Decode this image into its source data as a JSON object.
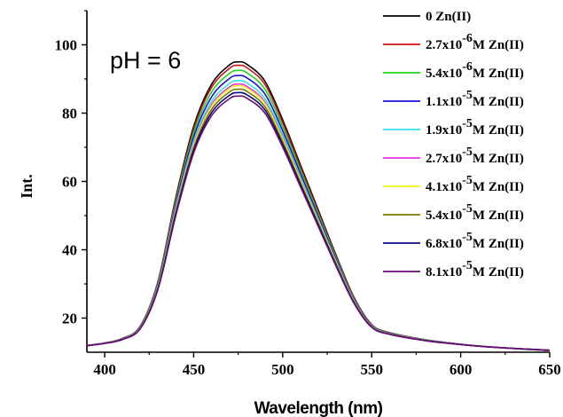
{
  "chart_data": {
    "type": "line",
    "xlabel": "Wavelength (nm)",
    "ylabel": "Int.",
    "annotation": "pH = 6",
    "xlim": [
      390,
      650
    ],
    "ylim": [
      10,
      110
    ],
    "x_ticks": [
      400,
      450,
      500,
      550,
      600,
      650
    ],
    "y_ticks": [
      20,
      40,
      60,
      80,
      100
    ],
    "legend_position": "top-right",
    "x": [
      390,
      400,
      410,
      420,
      430,
      440,
      450,
      460,
      470,
      475,
      480,
      490,
      500,
      510,
      520,
      530,
      540,
      550,
      560,
      580,
      600,
      620,
      650
    ],
    "series": [
      {
        "name_prefix": "0 Zn(II)",
        "name_exp": "",
        "name_suffix": "",
        "color": "#000000",
        "peak": 95.0
      },
      {
        "name_prefix": "2.7x10",
        "name_exp": "-6",
        "name_suffix": "M Zn(II)",
        "color": "#d11010",
        "peak": 94.0
      },
      {
        "name_prefix": "5.4x10",
        "name_exp": "-6",
        "name_suffix": "M Zn(II)",
        "color": "#1ed41e",
        "peak": 92.5
      },
      {
        "name_prefix": "1.1x10",
        "name_exp": "-5",
        "name_suffix": "M Zn(II)",
        "color": "#1414d8",
        "peak": 91.0
      },
      {
        "name_prefix": "1.9x10",
        "name_exp": "-5",
        "name_suffix": "M Zn(II)",
        "color": "#2ee0f0",
        "peak": 89.5
      },
      {
        "name_prefix": "2.7x10",
        "name_exp": "-5",
        "name_suffix": "M Zn(II)",
        "color": "#e834e8",
        "peak": 88.5
      },
      {
        "name_prefix": "4.1x10",
        "name_exp": "-5",
        "name_suffix": "M Zn(II)",
        "color": "#f0f020",
        "peak": 88.0
      },
      {
        "name_prefix": "5.4x10",
        "name_exp": "-5",
        "name_suffix": "M Zn(II)",
        "color": "#7a7a00",
        "peak": 87.0
      },
      {
        "name_prefix": "6.8x10",
        "name_exp": "-5",
        "name_suffix": "M Zn(II)",
        "color": "#0a0a80",
        "peak": 86.0
      },
      {
        "name_prefix": "8.1x10",
        "name_exp": "-5",
        "name_suffix": "M Zn(II)",
        "color": "#6a0a7a",
        "peak": 85.0
      }
    ],
    "shape": [
      12.0,
      12.8,
      14.2,
      18.0,
      32.0,
      58.0,
      80.0,
      93.0,
      99.0,
      100.0,
      99.2,
      94.0,
      82.0,
      68.0,
      54.0,
      40.0,
      27.0,
      18.5,
      16.0,
      13.8,
      12.4,
      11.4,
      10.4
    ]
  }
}
